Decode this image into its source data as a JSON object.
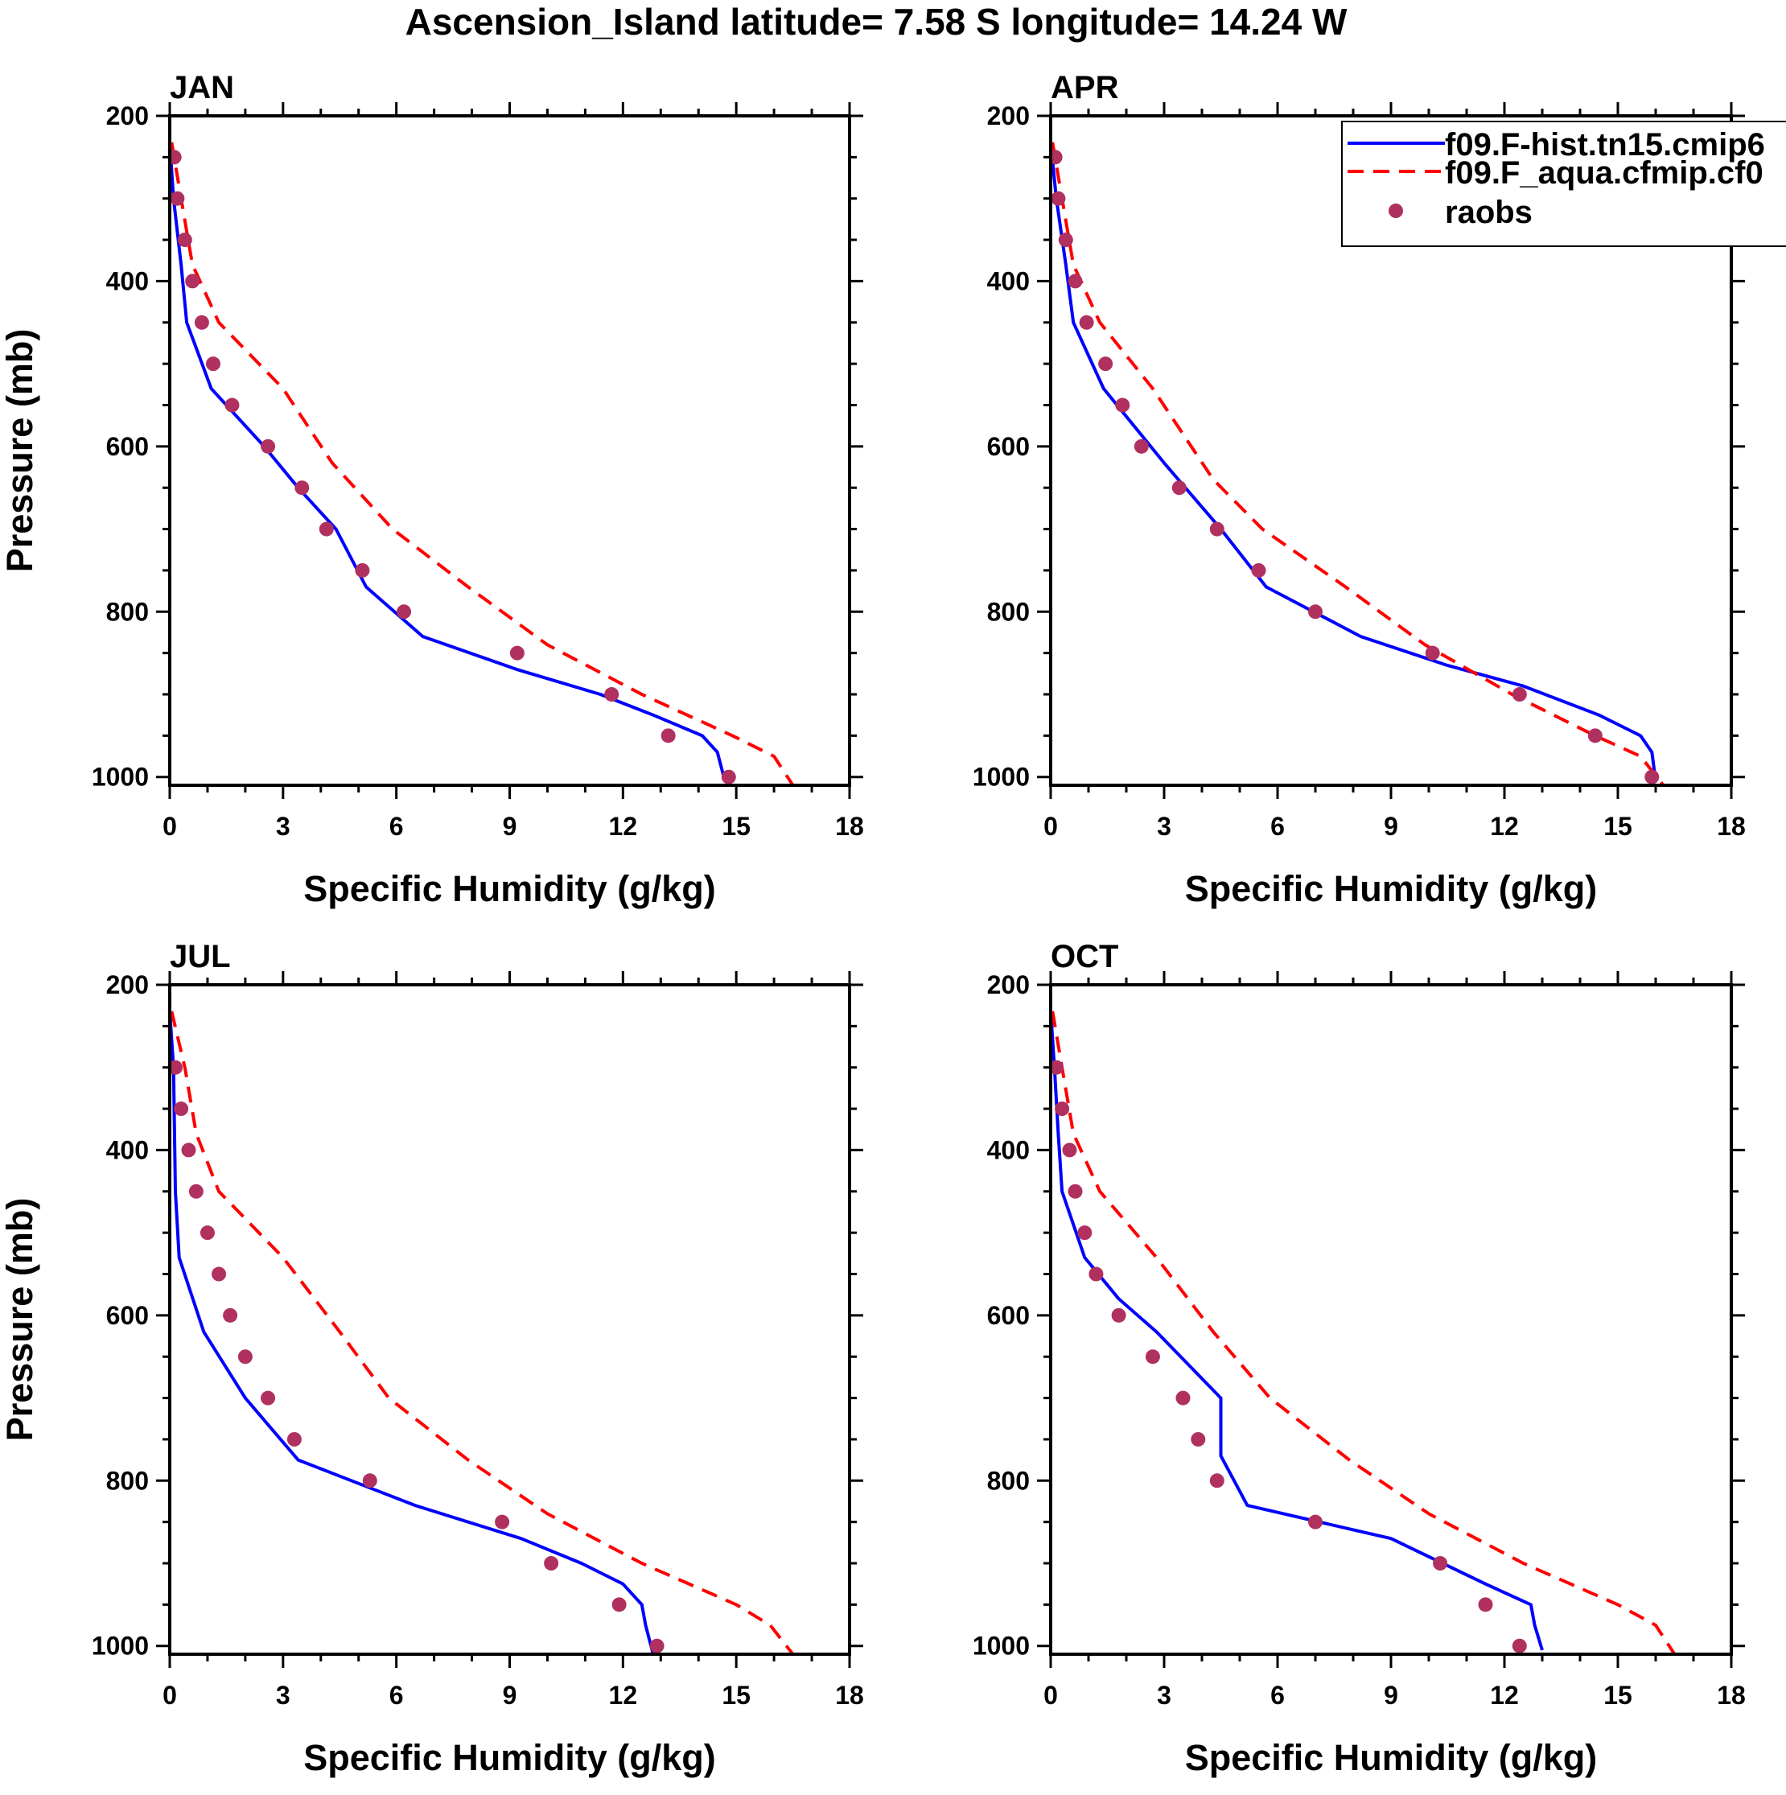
{
  "chart_data": {
    "type": "line",
    "title": "Ascension_Island  latitude= 7.58 S longitude= 14.24 W",
    "xlabel": "Specific Humidity (g/kg)",
    "ylabel": "Pressure (mb)",
    "xlim": [
      0,
      18
    ],
    "ylim": [
      200,
      1010
    ],
    "y_inverted": true,
    "x_ticks": [
      0,
      3,
      6,
      9,
      12,
      15,
      18
    ],
    "y_ticks": [
      200,
      400,
      600,
      800,
      1000
    ],
    "legend": {
      "placement": "top-right of APR panel",
      "entries": [
        {
          "label": "f09.F-hist.tn15.cmip6",
          "style": "solid",
          "color": "#0000ff"
        },
        {
          "label": "f09.F_aqua.cfmip.cf0",
          "style": "dashed",
          "color": "#ff0000"
        },
        {
          "label": "raobs",
          "style": "marker",
          "color": "#b03060"
        }
      ]
    },
    "panels": [
      {
        "label": "JAN",
        "series": [
          {
            "name": "f09.F-hist.tn15.cmip6",
            "color": "#0000ff",
            "x": [
              0,
              0.1,
              0.3,
              0.45,
              1.1,
              2.5,
              3.4,
              4.4,
              5.2,
              6.7,
              9.2,
              11.4,
              12.8,
              14.1,
              14.5,
              14.7
            ],
            "y": [
              232,
              300,
              380,
              450,
              530,
              600,
              650,
              700,
              770,
              830,
              870,
              900,
              925,
              950,
              970,
              1005
            ]
          },
          {
            "name": "f09.F_aqua.cfmip.cf0",
            "color": "#ff0000",
            "x": [
              0.05,
              0.3,
              0.6,
              1.3,
              3.0,
              4.3,
              5.9,
              7.9,
              10.0,
              12.5,
              14.9,
              16.0,
              16.5
            ],
            "y": [
              232,
              300,
              380,
              450,
              530,
              620,
              700,
              770,
              840,
              900,
              950,
              975,
              1010
            ]
          },
          {
            "name": "raobs",
            "color": "#b03060",
            "x": [
              0.12,
              0.2,
              0.4,
              0.6,
              0.85,
              1.15,
              1.65,
              2.6,
              3.5,
              4.15,
              5.1,
              6.2,
              9.2,
              11.7,
              13.2,
              14.8
            ],
            "y": [
              250,
              300,
              350,
              400,
              450,
              500,
              550,
              600,
              650,
              700,
              750,
              800,
              850,
              900,
              950,
              1000
            ]
          }
        ]
      },
      {
        "label": "APR",
        "series": [
          {
            "name": "f09.F-hist.tn15.cmip6",
            "color": "#0000ff",
            "x": [
              0,
              0.15,
              0.4,
              0.6,
              1.4,
              3.0,
              4.5,
              5.7,
              8.2,
              10.5,
              12.5,
              14.5,
              15.6,
              15.9,
              16.0
            ],
            "y": [
              232,
              300,
              380,
              450,
              530,
              620,
              700,
              770,
              830,
              865,
              890,
              925,
              950,
              970,
              1005
            ]
          },
          {
            "name": "f09.F_aqua.cfmip.cf0",
            "color": "#ff0000",
            "x": [
              0.05,
              0.3,
              0.6,
              1.3,
              2.7,
              4.3,
              5.6,
              7.8,
              9.9,
              12.2,
              14.4,
              15.6,
              16.2
            ],
            "y": [
              232,
              300,
              380,
              450,
              530,
              640,
              700,
              770,
              840,
              900,
              950,
              975,
              1010
            ]
          },
          {
            "name": "raobs",
            "color": "#b03060",
            "x": [
              0.12,
              0.2,
              0.4,
              0.65,
              0.95,
              1.45,
              1.9,
              2.4,
              3.4,
              4.4,
              5.5,
              7.0,
              10.1,
              12.4,
              14.4,
              15.9
            ],
            "y": [
              250,
              300,
              350,
              400,
              450,
              500,
              550,
              600,
              650,
              700,
              750,
              800,
              850,
              900,
              950,
              1000
            ]
          }
        ]
      },
      {
        "label": "JUL",
        "series": [
          {
            "name": "f09.F-hist.tn15.cmip6",
            "color": "#0000ff",
            "x": [
              0,
              0.1,
              0.15,
              0.25,
              0.9,
              2.0,
              3.4,
              6.5,
              9.3,
              10.9,
              12.0,
              12.5,
              12.6,
              12.8
            ],
            "y": [
              232,
              300,
              450,
              530,
              620,
              700,
              775,
              830,
              870,
              900,
              925,
              950,
              975,
              1010
            ]
          },
          {
            "name": "f09.F_aqua.cfmip.cf0",
            "color": "#ff0000",
            "x": [
              0.05,
              0.4,
              0.7,
              1.3,
              3.0,
              4.5,
              5.8,
              7.9,
              10.0,
              12.5,
              15.0,
              15.9,
              16.5
            ],
            "y": [
              232,
              300,
              380,
              450,
              530,
              620,
              700,
              775,
              840,
              900,
              950,
              975,
              1010
            ]
          },
          {
            "name": "raobs",
            "color": "#b03060",
            "x": [
              0.15,
              0.3,
              0.5,
              0.7,
              1.0,
              1.3,
              1.6,
              2.0,
              2.6,
              3.3,
              5.3,
              8.8,
              10.1,
              11.9,
              12.9
            ],
            "y": [
              300,
              350,
              400,
              450,
              500,
              550,
              600,
              650,
              700,
              750,
              800,
              850,
              900,
              950,
              1000
            ]
          }
        ]
      },
      {
        "label": "OCT",
        "series": [
          {
            "name": "f09.F-hist.tn15.cmip6",
            "color": "#0000ff",
            "x": [
              0,
              0.1,
              0.2,
              0.3,
              0.9,
              1.8,
              2.8,
              4.5,
              4.5,
              5.2,
              9.0,
              11.5,
              12.7,
              12.8,
              13.0
            ],
            "y": [
              232,
              300,
              380,
              450,
              530,
              580,
              620,
              700,
              770,
              830,
              870,
              925,
              950,
              975,
              1005
            ]
          },
          {
            "name": "f09.F_aqua.cfmip.cf0",
            "color": "#ff0000",
            "x": [
              0.05,
              0.3,
              0.6,
              1.3,
              2.8,
              4.3,
              5.8,
              7.9,
              10.0,
              12.5,
              15.0,
              16.0,
              16.5
            ],
            "y": [
              232,
              300,
              380,
              450,
              530,
              620,
              700,
              775,
              840,
              900,
              950,
              975,
              1010
            ]
          },
          {
            "name": "raobs",
            "color": "#b03060",
            "x": [
              0.15,
              0.3,
              0.5,
              0.65,
              0.9,
              1.2,
              1.8,
              2.7,
              3.5,
              3.9,
              4.4,
              7.0,
              10.3,
              11.5,
              12.4
            ],
            "y": [
              300,
              350,
              400,
              450,
              500,
              550,
              600,
              650,
              700,
              750,
              800,
              850,
              900,
              950,
              1000
            ]
          }
        ]
      }
    ]
  }
}
